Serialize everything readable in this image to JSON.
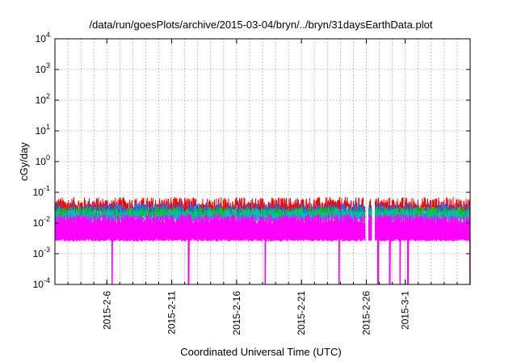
{
  "chart_data": {
    "type": "line",
    "title": "/data/run/goesPlots/archive/2015-03-04/bryn/../bryn/31daysEarthData.plot",
    "xlabel": "Coordinated Universal Time (UTC)",
    "ylabel": "cGy/day",
    "yscale": "log",
    "ylim": [
      0.0001,
      10000
    ],
    "yticks": [
      {
        "value": 0.0001,
        "base": "10",
        "exp": "-4"
      },
      {
        "value": 0.001,
        "base": "10",
        "exp": "-3"
      },
      {
        "value": 0.01,
        "base": "10",
        "exp": "-2"
      },
      {
        "value": 0.1,
        "base": "10",
        "exp": "-1"
      },
      {
        "value": 1,
        "base": "10",
        "exp": "0"
      },
      {
        "value": 10,
        "base": "10",
        "exp": "1"
      },
      {
        "value": 100,
        "base": "10",
        "exp": "2"
      },
      {
        "value": 1000,
        "base": "10",
        "exp": "3"
      },
      {
        "value": 10000,
        "base": "10",
        "exp": "4"
      }
    ],
    "xlim": [
      "2015-02-02",
      "2015-03-06"
    ],
    "xticks": [
      "2015-2-6",
      "2015-2-11",
      "2015-2-16",
      "2015-2-21",
      "2015-2-26",
      "2015-3-1"
    ],
    "grid": true,
    "legend": "none",
    "data_gaps": [
      [
        "2015-02-25T22:00",
        "2015-02-26T04:00"
      ],
      [
        "2015-02-26T10:00",
        "2015-02-26T16:00"
      ]
    ],
    "series": [
      {
        "color": "#ff0000",
        "min": 0.02,
        "max": 0.07
      },
      {
        "color": "#00cc00",
        "min": 0.012,
        "max": 0.035
      },
      {
        "color": "#1a6aff",
        "min": 0.015,
        "max": 0.045
      },
      {
        "color": "#00bbbb",
        "min": 0.01,
        "max": 0.03
      },
      {
        "color": "#ff00ff",
        "min": 0.0001,
        "max": 0.02
      }
    ]
  }
}
